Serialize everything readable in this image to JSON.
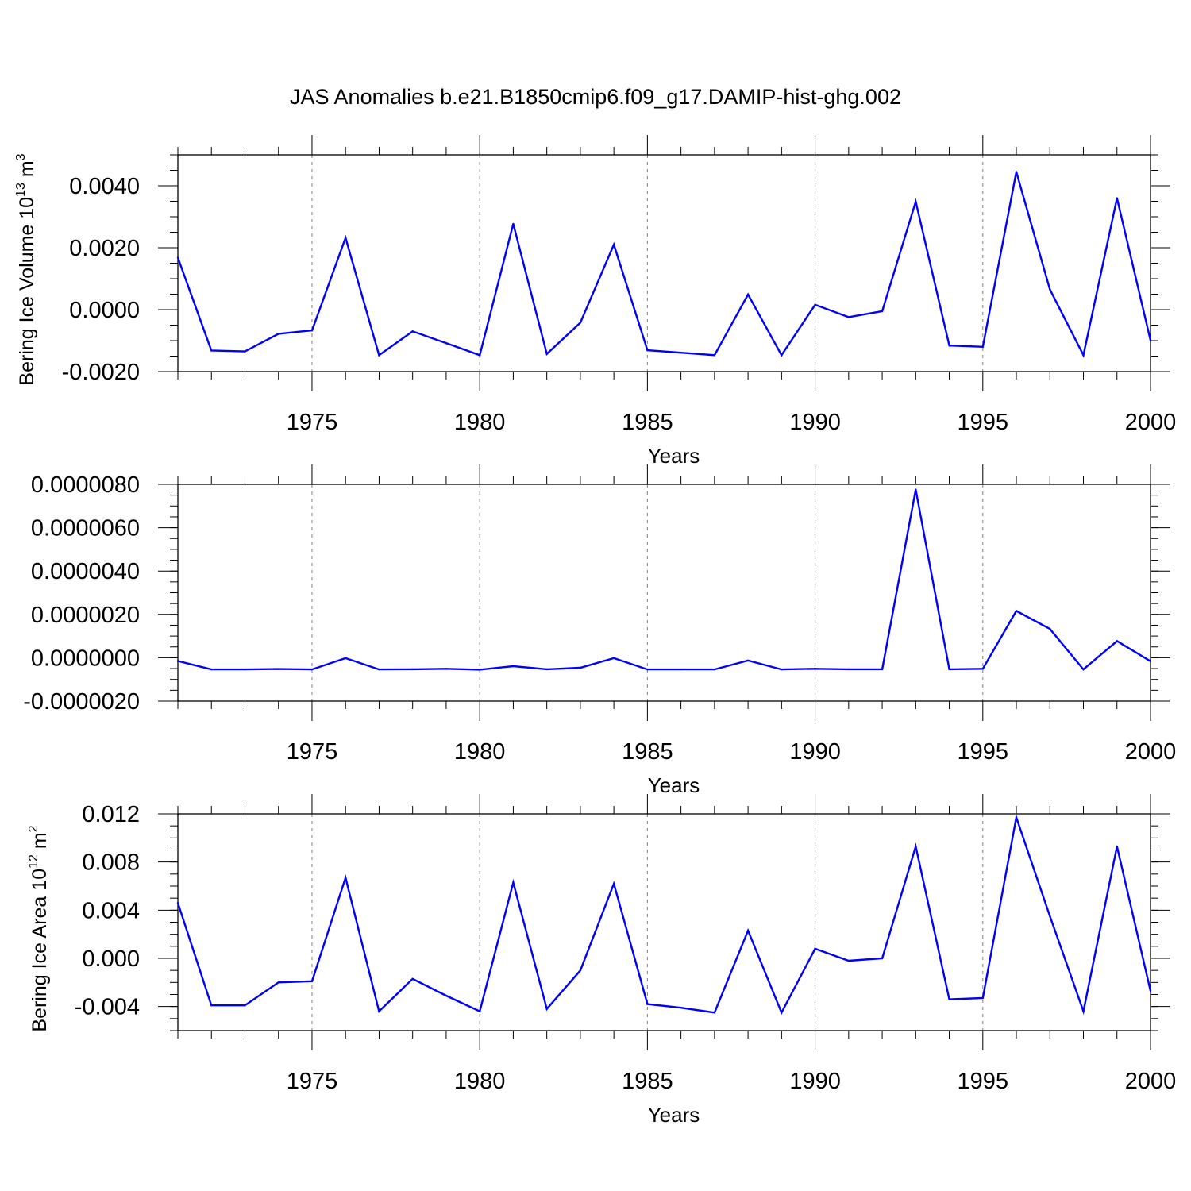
{
  "title": "JAS Anomalies b.e21.B1850cmip6.f09_g17.DAMIP-hist-ghg.002",
  "colors": {
    "series": "#0000ff",
    "axis": "#000000",
    "grid": "#808080"
  },
  "chart_data": [
    {
      "type": "line",
      "ylabel": "Bering Ice Volume 10",
      "ylabel_sup": "13",
      "ylabel_unit": " m",
      "ylabel_unit_sup": "3",
      "xlabel": "Years",
      "xlim": [
        1971,
        2000
      ],
      "ylim": [
        -0.002,
        0.005
      ],
      "yticks": [
        -0.002,
        0,
        0.002,
        0.004
      ],
      "ytick_labels": [
        "-0.0020",
        "0.0000",
        "0.0020",
        "0.0040"
      ],
      "yminor_step": 0.0005,
      "xticks": [
        1975,
        1980,
        1985,
        1990,
        1995,
        2000
      ],
      "xtick_labels": [
        "1975",
        "1980",
        "1985",
        "1990",
        "1995",
        "2000"
      ],
      "x": [
        1971,
        1972,
        1973,
        1974,
        1975,
        1976,
        1977,
        1978,
        1979,
        1980,
        1981,
        1982,
        1983,
        1984,
        1985,
        1986,
        1987,
        1988,
        1989,
        1990,
        1991,
        1992,
        1993,
        1994,
        1995,
        1996,
        1997,
        1998,
        1999,
        2000
      ],
      "values": [
        0.00168,
        -0.00132,
        -0.00135,
        -0.00078,
        -0.00067,
        0.00232,
        -0.00147,
        -0.0007,
        -0.00108,
        -0.00147,
        0.00277,
        -0.00143,
        -0.00042,
        0.0021,
        -0.00131,
        -0.00139,
        -0.00147,
        0.00049,
        -0.00147,
        0.00016,
        -0.00024,
        -5e-05,
        0.00349,
        -0.00116,
        -0.0012,
        0.00445,
        0.00065,
        -0.00147,
        0.0036,
        -0.00099
      ]
    },
    {
      "type": "line",
      "ylabel": "",
      "xlabel": "Years",
      "xlim": [
        1971,
        2000
      ],
      "ylim": [
        -2e-06,
        8e-06
      ],
      "yticks": [
        -2e-06,
        0,
        2e-06,
        4e-06,
        6e-06,
        8e-06
      ],
      "ytick_labels": [
        "-0.0000020",
        "0.0000000",
        "0.0000020",
        "0.0000040",
        "0.0000060",
        "0.0000080"
      ],
      "yminor_step": 5e-07,
      "xticks": [
        1975,
        1980,
        1985,
        1990,
        1995,
        2000
      ],
      "xtick_labels": [
        "1975",
        "1980",
        "1985",
        "1990",
        "1995",
        "2000"
      ],
      "x": [
        1971,
        1972,
        1973,
        1974,
        1975,
        1976,
        1977,
        1978,
        1979,
        1980,
        1981,
        1982,
        1983,
        1984,
        1985,
        1986,
        1987,
        1988,
        1989,
        1990,
        1991,
        1992,
        1993,
        1994,
        1995,
        1996,
        1997,
        1998,
        1999,
        2000
      ],
      "values": [
        -1.5e-07,
        -5.4e-07,
        -5.4e-07,
        -5.2e-07,
        -5.4e-07,
        -2e-08,
        -5.4e-07,
        -5.3e-07,
        -5.1e-07,
        -5.5e-07,
        -3.9e-07,
        -5.3e-07,
        -4.6e-07,
        -2e-08,
        -5.4e-07,
        -5.4e-07,
        -5.4e-07,
        -1.3e-07,
        -5.4e-07,
        -5.1e-07,
        -5.3e-07,
        -5.3e-07,
        7.76e-06,
        -5.3e-07,
        -5.1e-07,
        2.16e-06,
        1.33e-06,
        -5.4e-07,
        7.7e-07,
        -1.6e-07
      ]
    },
    {
      "type": "line",
      "ylabel": "Bering Ice Area 10",
      "ylabel_sup": "12",
      "ylabel_unit": " m",
      "ylabel_unit_sup": "2",
      "xlabel": "Years",
      "xlim": [
        1971,
        2000
      ],
      "ylim": [
        -0.006,
        0.012
      ],
      "yticks": [
        -0.004,
        0,
        0.004,
        0.008,
        0.012
      ],
      "ytick_labels": [
        "-0.004",
        "0.000",
        "0.004",
        "0.008",
        "0.012"
      ],
      "yminor_step": 0.001,
      "xticks": [
        1975,
        1980,
        1985,
        1990,
        1995,
        2000
      ],
      "xtick_labels": [
        "1975",
        "1980",
        "1985",
        "1990",
        "1995",
        "2000"
      ],
      "x": [
        1971,
        1972,
        1973,
        1974,
        1975,
        1976,
        1977,
        1978,
        1979,
        1980,
        1981,
        1982,
        1983,
        1984,
        1985,
        1986,
        1987,
        1988,
        1989,
        1990,
        1991,
        1992,
        1993,
        1994,
        1995,
        1996,
        1997,
        1998,
        1999,
        2000
      ],
      "values": [
        0.0046,
        -0.0039,
        -0.0039,
        -0.002,
        -0.0019,
        0.0067,
        -0.0044,
        -0.0017,
        -0.0031,
        -0.0044,
        0.0063,
        -0.0042,
        -0.001,
        0.0062,
        -0.0038,
        -0.0041,
        -0.0045,
        0.0023,
        -0.0045,
        0.0008,
        -0.0002,
        0.0,
        0.0093,
        -0.0034,
        -0.0033,
        0.0117,
        0.0035,
        -0.0044,
        0.0093,
        -0.0027
      ]
    }
  ]
}
